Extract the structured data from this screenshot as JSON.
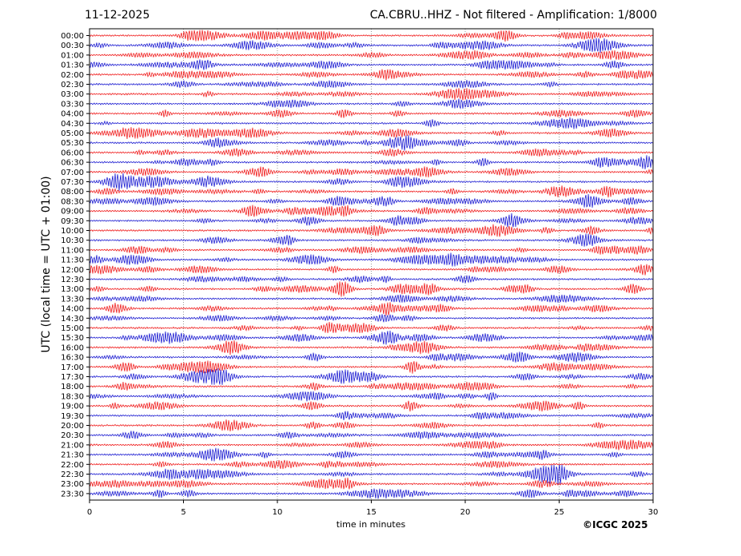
{
  "header": {
    "date": "11-12-2025",
    "station": "CA.CBRU..HHZ - Not filtered - Amplification: 1/8000"
  },
  "copyright": "©ICGC 2025",
  "chart_data": {
    "type": "line",
    "title": "CA.CBRU..HHZ - Not filtered - Amplification: 1/8000",
    "xlabel": "time in minutes",
    "ylabel": "UTC (local time = UTC + 01:00)",
    "xlim": [
      0,
      30
    ],
    "xticks": [
      0,
      5,
      10,
      15,
      20,
      25,
      30
    ],
    "grid": "vertical dotted at x ticks",
    "row_labels": [
      "00:00",
      "00:30",
      "01:00",
      "01:30",
      "02:00",
      "02:30",
      "03:00",
      "03:30",
      "04:00",
      "04:30",
      "05:00",
      "05:30",
      "06:00",
      "06:30",
      "07:00",
      "07:30",
      "08:00",
      "08:30",
      "09:00",
      "09:30",
      "10:00",
      "10:30",
      "11:00",
      "11:30",
      "12:00",
      "12:30",
      "13:00",
      "13:30",
      "14:00",
      "14:30",
      "15:00",
      "15:30",
      "16:00",
      "16:30",
      "17:00",
      "17:30",
      "18:00",
      "18:30",
      "19:00",
      "19:30",
      "20:00",
      "20:30",
      "21:00",
      "21:30",
      "22:00",
      "22:30",
      "23:00",
      "23:30"
    ],
    "trace_colors": [
      "#ee0000",
      "#0000cc"
    ]
  }
}
